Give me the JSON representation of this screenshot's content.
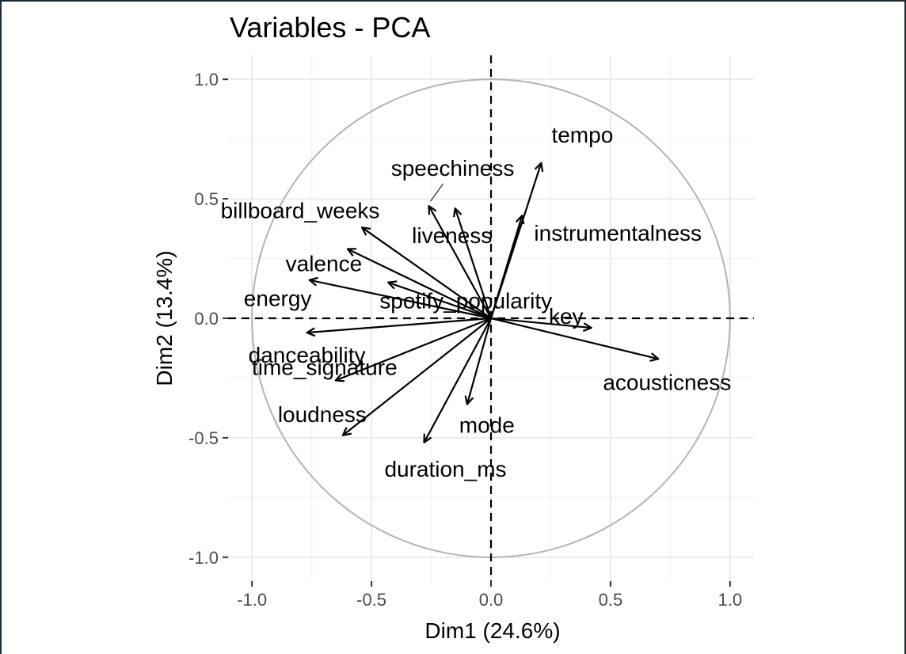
{
  "chart_data": {
    "type": "scatter",
    "title": "Variables - PCA",
    "xlabel": "Dim1 (24.6%)",
    "ylabel": "Dim2 (13.4%)",
    "xlim": [
      -1.1,
      1.1
    ],
    "ylim": [
      -1.1,
      1.1
    ],
    "xticks": [
      "-1.0",
      "-0.5",
      "0.0",
      "0.5",
      "1.0"
    ],
    "yticks": [
      "1.0",
      "0.5",
      "0.0",
      "-0.5",
      "-1.0"
    ],
    "grid": true,
    "unit_circle": true,
    "reference_lines": "dashed lines at x = 0 and y = 0",
    "vectors": [
      {
        "name": "tempo",
        "x": 0.21,
        "y": 0.65
      },
      {
        "name": "speechiness",
        "x": -0.26,
        "y": 0.47
      },
      {
        "name": "billboard_weeks",
        "x": -0.54,
        "y": 0.38
      },
      {
        "name": "liveness",
        "x": -0.15,
        "y": 0.46
      },
      {
        "name": "instrumentalness",
        "x": 0.13,
        "y": 0.43
      },
      {
        "name": "valence",
        "x": -0.6,
        "y": 0.29
      },
      {
        "name": "energy",
        "x": -0.76,
        "y": 0.16
      },
      {
        "name": "spotify_popularity",
        "x": -0.43,
        "y": 0.15
      },
      {
        "name": "key",
        "x": 0.42,
        "y": -0.04
      },
      {
        "name": "acousticness",
        "x": 0.7,
        "y": -0.17
      },
      {
        "name": "danceability",
        "x": -0.77,
        "y": -0.06
      },
      {
        "name": "time_signature",
        "x": -0.65,
        "y": -0.26
      },
      {
        "name": "loudness",
        "x": -0.62,
        "y": -0.49
      },
      {
        "name": "mode",
        "x": -0.1,
        "y": -0.36
      },
      {
        "name": "duration_ms",
        "x": -0.28,
        "y": -0.52
      }
    ]
  },
  "colors": {
    "arrow": "#000000",
    "circle": "#b3b3b3",
    "grid_major": "#ebebeb",
    "grid_minor": "#f5f5f5",
    "tick_text": "#4d4d4d"
  }
}
